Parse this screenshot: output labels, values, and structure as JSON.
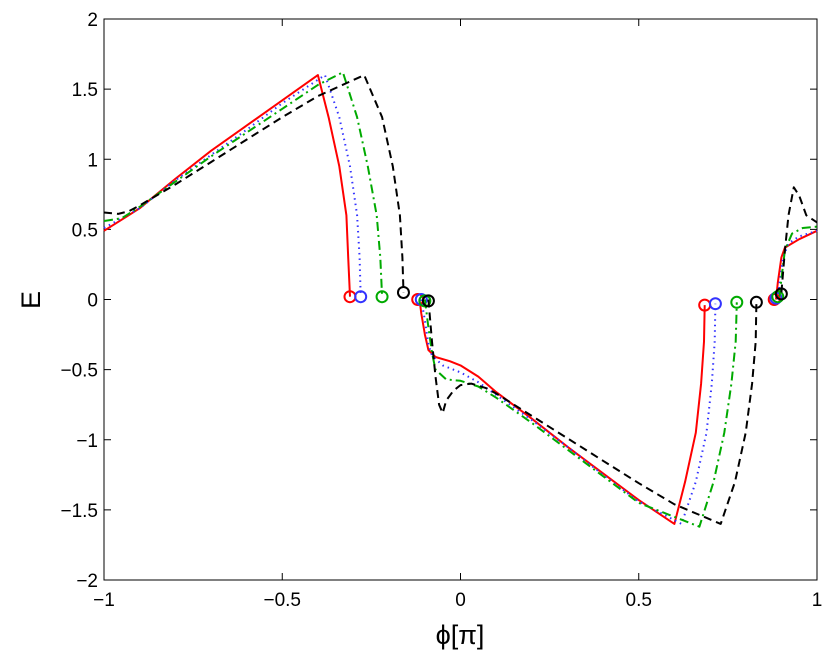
{
  "chart_data": {
    "type": "line",
    "xlabel": "ϕ[π]",
    "ylabel": "E",
    "xlim": [
      -1,
      1
    ],
    "ylim": [
      -2,
      2
    ],
    "xticks": [
      -1,
      -0.5,
      0,
      0.5,
      1
    ],
    "xtick_labels": [
      "−1",
      "−0.5",
      "0",
      "0.5",
      "1"
    ],
    "yticks": [
      -2,
      -1.5,
      -1,
      -0.5,
      0,
      0.5,
      1,
      1.5,
      2
    ],
    "ytick_labels": [
      "−2",
      "−1.5",
      "−1",
      "−0.5",
      "0",
      "0.5",
      "1",
      "1.5",
      "2"
    ],
    "grid": false,
    "series": [
      {
        "color": "#ff0000",
        "dash": "solid",
        "segments": [
          [
            [
              -1.0,
              0.49
            ],
            [
              -0.9,
              0.65
            ],
            [
              -0.8,
              0.86
            ],
            [
              -0.7,
              1.06
            ],
            [
              -0.6,
              1.24
            ],
            [
              -0.5,
              1.42
            ],
            [
              -0.4,
              1.6
            ],
            [
              -0.37,
              1.3
            ],
            [
              -0.34,
              0.95
            ],
            [
              -0.32,
              0.6
            ],
            [
              -0.315,
              0.3
            ],
            [
              -0.31,
              0.02
            ]
          ],
          [
            [
              -0.115,
              0.0
            ],
            [
              -0.11,
              -0.1
            ],
            [
              -0.1,
              -0.25
            ],
            [
              -0.09,
              -0.36
            ],
            [
              -0.07,
              -0.41
            ],
            [
              -0.03,
              -0.44
            ],
            [
              0.0,
              -0.47
            ],
            [
              0.05,
              -0.55
            ],
            [
              0.1,
              -0.66
            ],
            [
              0.2,
              -0.85
            ],
            [
              0.3,
              -1.05
            ],
            [
              0.4,
              -1.24
            ],
            [
              0.5,
              -1.43
            ],
            [
              0.6,
              -1.6
            ],
            [
              0.63,
              -1.3
            ],
            [
              0.66,
              -0.95
            ],
            [
              0.675,
              -0.6
            ],
            [
              0.683,
              -0.3
            ],
            [
              0.685,
              -0.04
            ]
          ],
          [
            [
              0.885,
              0.0
            ],
            [
              0.89,
              0.12
            ],
            [
              0.9,
              0.3
            ],
            [
              0.91,
              0.37
            ],
            [
              0.95,
              0.43
            ],
            [
              1.0,
              0.49
            ]
          ]
        ],
        "markers": [
          [
            -0.31,
            0.02
          ],
          [
            -0.12,
            0.0
          ],
          [
            0.685,
            -0.04
          ],
          [
            0.88,
            0.0
          ]
        ]
      },
      {
        "color": "#3333ff",
        "dash": "dotted",
        "segments": [
          [
            [
              -1.0,
              0.51
            ],
            [
              -0.9,
              0.65
            ],
            [
              -0.8,
              0.85
            ],
            [
              -0.7,
              1.03
            ],
            [
              -0.6,
              1.21
            ],
            [
              -0.5,
              1.4
            ],
            [
              -0.38,
              1.6
            ],
            [
              -0.34,
              1.3
            ],
            [
              -0.31,
              0.95
            ],
            [
              -0.29,
              0.6
            ],
            [
              -0.283,
              0.3
            ],
            [
              -0.28,
              0.02
            ]
          ],
          [
            [
              -0.11,
              0.0
            ],
            [
              -0.1,
              -0.15
            ],
            [
              -0.09,
              -0.32
            ],
            [
              -0.08,
              -0.4
            ],
            [
              -0.05,
              -0.47
            ],
            [
              0.0,
              -0.52
            ],
            [
              0.05,
              -0.59
            ],
            [
              0.1,
              -0.68
            ],
            [
              0.2,
              -0.86
            ],
            [
              0.3,
              -1.05
            ],
            [
              0.4,
              -1.25
            ],
            [
              0.5,
              -1.44
            ],
            [
              0.62,
              -1.6
            ],
            [
              0.66,
              -1.3
            ],
            [
              0.69,
              -0.95
            ],
            [
              0.705,
              -0.6
            ],
            [
              0.713,
              -0.3
            ],
            [
              0.715,
              -0.03
            ]
          ],
          [
            [
              0.89,
              0.0
            ],
            [
              0.895,
              0.12
            ],
            [
              0.905,
              0.3
            ],
            [
              0.92,
              0.4
            ],
            [
              0.95,
              0.45
            ],
            [
              1.0,
              0.49
            ]
          ]
        ],
        "markers": [
          [
            -0.28,
            0.02
          ],
          [
            -0.11,
            0.0
          ],
          [
            0.715,
            -0.03
          ],
          [
            0.885,
            0.01
          ]
        ]
      },
      {
        "color": "#00aa00",
        "dash": "dashdot",
        "segments": [
          [
            [
              -1.0,
              0.56
            ],
            [
              -0.95,
              0.58
            ],
            [
              -0.9,
              0.66
            ],
            [
              -0.8,
              0.84
            ],
            [
              -0.7,
              1.02
            ],
            [
              -0.6,
              1.19
            ],
            [
              -0.5,
              1.36
            ],
            [
              -0.4,
              1.53
            ],
            [
              -0.33,
              1.62
            ],
            [
              -0.29,
              1.3
            ],
            [
              -0.26,
              0.95
            ],
            [
              -0.235,
              0.6
            ],
            [
              -0.225,
              0.3
            ],
            [
              -0.22,
              0.02
            ]
          ],
          [
            [
              -0.1,
              0.0
            ],
            [
              -0.09,
              -0.2
            ],
            [
              -0.08,
              -0.38
            ],
            [
              -0.07,
              -0.5
            ],
            [
              -0.04,
              -0.57
            ],
            [
              0.0,
              -0.58
            ],
            [
              0.05,
              -0.62
            ],
            [
              0.1,
              -0.7
            ],
            [
              0.2,
              -0.88
            ],
            [
              0.3,
              -1.07
            ],
            [
              0.4,
              -1.26
            ],
            [
              0.5,
              -1.45
            ],
            [
              0.67,
              -1.62
            ],
            [
              0.71,
              -1.3
            ],
            [
              0.74,
              -0.95
            ],
            [
              0.76,
              -0.6
            ],
            [
              0.772,
              -0.3
            ],
            [
              0.775,
              -0.02
            ]
          ],
          [
            [
              0.895,
              0.02
            ],
            [
              0.9,
              0.15
            ],
            [
              0.91,
              0.35
            ],
            [
              0.93,
              0.47
            ],
            [
              0.96,
              0.51
            ],
            [
              1.0,
              0.52
            ]
          ]
        ],
        "markers": [
          [
            -0.22,
            0.02
          ],
          [
            -0.1,
            -0.01
          ],
          [
            0.775,
            -0.02
          ],
          [
            0.89,
            0.02
          ]
        ]
      },
      {
        "color": "#000000",
        "dash": "dashed",
        "segments": [
          [
            [
              -1.0,
              0.62
            ],
            [
              -0.96,
              0.61
            ],
            [
              -0.93,
              0.63
            ],
            [
              -0.9,
              0.67
            ],
            [
              -0.8,
              0.82
            ],
            [
              -0.7,
              0.98
            ],
            [
              -0.6,
              1.14
            ],
            [
              -0.5,
              1.3
            ],
            [
              -0.4,
              1.45
            ],
            [
              -0.27,
              1.6
            ],
            [
              -0.22,
              1.3
            ],
            [
              -0.19,
              0.95
            ],
            [
              -0.17,
              0.6
            ],
            [
              -0.163,
              0.3
            ],
            [
              -0.16,
              0.05
            ]
          ],
          [
            [
              -0.09,
              0.0
            ],
            [
              -0.08,
              -0.3
            ],
            [
              -0.07,
              -0.55
            ],
            [
              -0.06,
              -0.75
            ],
            [
              -0.05,
              -0.81
            ],
            [
              -0.04,
              -0.72
            ],
            [
              -0.02,
              -0.65
            ],
            [
              0.0,
              -0.61
            ],
            [
              0.03,
              -0.6
            ],
            [
              0.07,
              -0.63
            ],
            [
              0.1,
              -0.67
            ],
            [
              0.2,
              -0.83
            ],
            [
              0.3,
              -0.99
            ],
            [
              0.4,
              -1.15
            ],
            [
              0.5,
              -1.31
            ],
            [
              0.6,
              -1.46
            ],
            [
              0.73,
              -1.6
            ],
            [
              0.77,
              -1.3
            ],
            [
              0.8,
              -0.95
            ],
            [
              0.818,
              -0.6
            ],
            [
              0.828,
              -0.3
            ],
            [
              0.83,
              -0.02
            ]
          ],
          [
            [
              0.9,
              0.05
            ],
            [
              0.91,
              0.35
            ],
            [
              0.92,
              0.6
            ],
            [
              0.935,
              0.8
            ],
            [
              0.95,
              0.74
            ],
            [
              0.97,
              0.6
            ],
            [
              1.0,
              0.55
            ]
          ]
        ],
        "markers": [
          [
            -0.16,
            0.05
          ],
          [
            -0.09,
            -0.01
          ],
          [
            0.83,
            -0.02
          ],
          [
            0.9,
            0.04
          ]
        ]
      }
    ]
  }
}
